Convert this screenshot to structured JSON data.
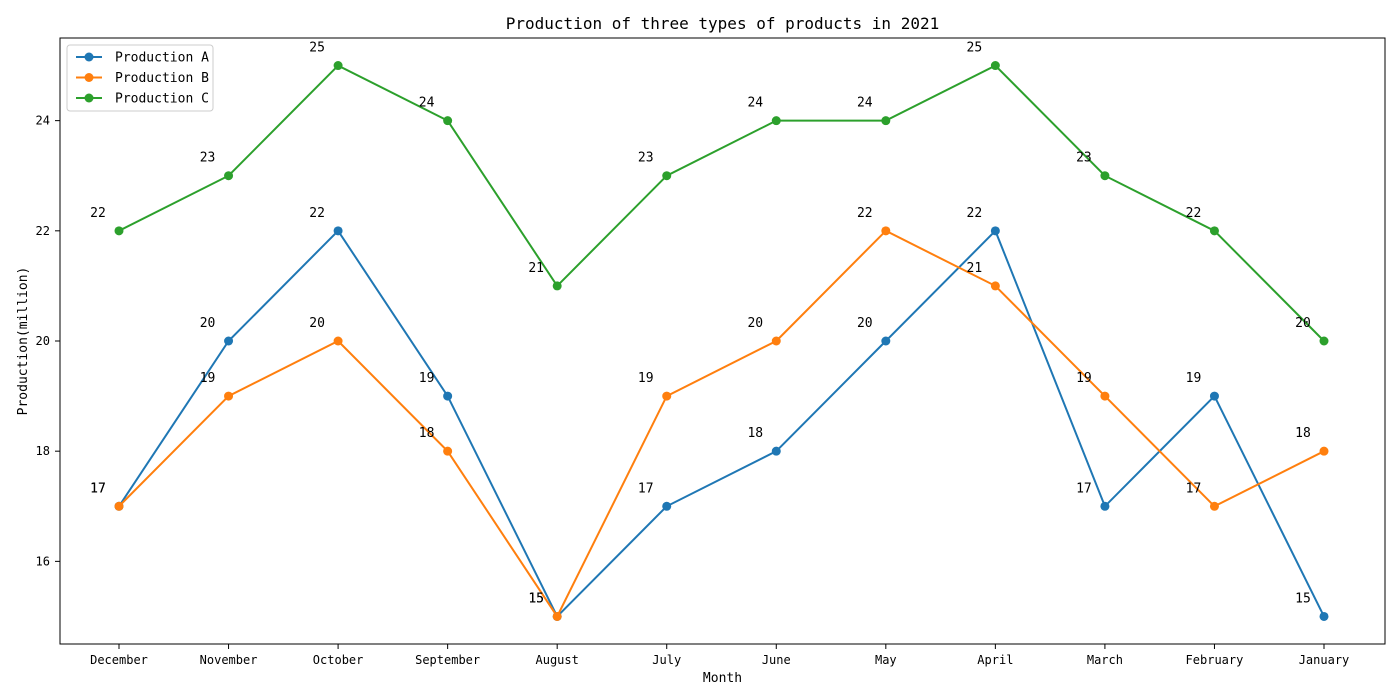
{
  "chart_data": {
    "type": "line",
    "title": "Production of three types of products in 2021",
    "xlabel": "Month",
    "ylabel": "Production(million)",
    "categories": [
      "December",
      "November",
      "October",
      "September",
      "August",
      "July",
      "June",
      "May",
      "April",
      "March",
      "February",
      "January"
    ],
    "ylim": [
      14.5,
      25.5
    ],
    "yticks": [
      16,
      18,
      20,
      22,
      24
    ],
    "grid": false,
    "legend_position": "top-left",
    "show_data_labels": true,
    "series": [
      {
        "name": "Production A",
        "color": "#1f77b4",
        "values": [
          17,
          20,
          22,
          19,
          15,
          17,
          18,
          20,
          22,
          17,
          19,
          15
        ]
      },
      {
        "name": "Production B",
        "color": "#ff7f0e",
        "values": [
          17,
          19,
          20,
          18,
          15,
          19,
          20,
          22,
          21,
          19,
          17,
          18
        ]
      },
      {
        "name": "Production C",
        "color": "#2ca02c",
        "values": [
          22,
          23,
          25,
          24,
          21,
          23,
          24,
          24,
          25,
          23,
          22,
          20
        ]
      }
    ]
  }
}
